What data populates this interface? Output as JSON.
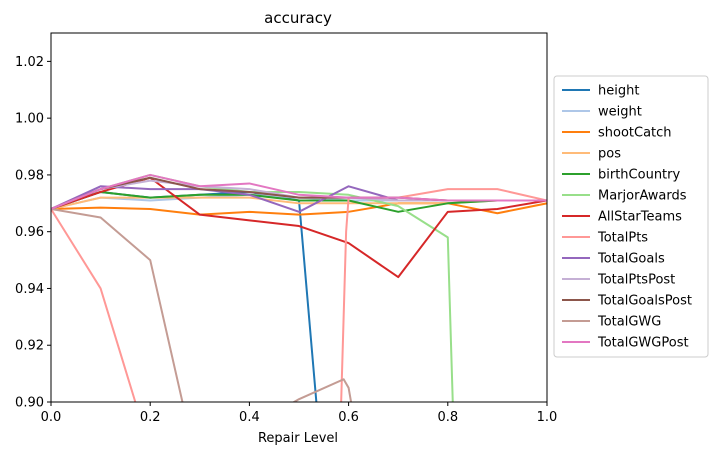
{
  "chart_data": {
    "type": "line",
    "title": "accuracy",
    "xlabel": "Repair Level",
    "ylabel": "",
    "xlim": [
      0,
      1
    ],
    "ylim": [
      0.9,
      1.03
    ],
    "xticks": [
      "0.0",
      "0.2",
      "0.4",
      "0.6",
      "0.8",
      "1.0"
    ],
    "yticks": [
      "0.90",
      "0.92",
      "0.94",
      "0.96",
      "0.98",
      "1.00",
      "1.02"
    ],
    "grid": false,
    "legend_position": "center-right-outside",
    "series": [
      {
        "name": "height",
        "color": "#1f77b4",
        "x": [
          0,
          0.1,
          0.2,
          0.3,
          0.4,
          0.5,
          0.535
        ],
        "y": [
          0.968,
          0.974,
          0.972,
          0.973,
          0.974,
          0.971,
          0.9
        ]
      },
      {
        "name": "weight",
        "color": "#aec7e8",
        "x": [
          0,
          0.1,
          0.2,
          0.3,
          0.4,
          0.5,
          0.6,
          0.7,
          0.8,
          0.9,
          1.0
        ],
        "y": [
          0.968,
          0.972,
          0.971,
          0.972,
          0.973,
          0.972,
          0.971,
          0.971,
          0.971,
          0.971,
          0.971
        ]
      },
      {
        "name": "shootCatch",
        "color": "#ff7f0e",
        "x": [
          0,
          0.1,
          0.2,
          0.3,
          0.4,
          0.5,
          0.6,
          0.7,
          0.8,
          0.9,
          1.0
        ],
        "y": [
          0.968,
          0.9685,
          0.968,
          0.966,
          0.967,
          0.966,
          0.967,
          0.97,
          0.97,
          0.9665,
          0.97
        ]
      },
      {
        "name": "pos",
        "color": "#ffbb78",
        "x": [
          0,
          0.1,
          0.2,
          0.3,
          0.4,
          0.5,
          0.6,
          0.7,
          0.8,
          0.9,
          1.0
        ],
        "y": [
          0.968,
          0.972,
          0.972,
          0.972,
          0.972,
          0.97,
          0.97,
          0.97,
          0.97,
          0.971,
          0.971
        ]
      },
      {
        "name": "birthCountry",
        "color": "#2ca02c",
        "x": [
          0,
          0.1,
          0.2,
          0.3,
          0.4,
          0.5,
          0.6,
          0.7,
          0.8,
          0.9,
          1.0
        ],
        "y": [
          0.968,
          0.974,
          0.972,
          0.973,
          0.973,
          0.971,
          0.971,
          0.967,
          0.97,
          0.971,
          0.971
        ]
      },
      {
        "name": "MarjorAwards",
        "color": "#98df8a",
        "x": [
          0,
          0.1,
          0.2,
          0.3,
          0.4,
          0.5,
          0.6,
          0.7,
          0.8,
          0.81
        ],
        "y": [
          0.968,
          0.975,
          0.98,
          0.976,
          0.974,
          0.974,
          0.973,
          0.969,
          0.958,
          0.9
        ]
      },
      {
        "name": "AllStarTeams",
        "color": "#d62728",
        "x": [
          0,
          0.1,
          0.2,
          0.3,
          0.4,
          0.5,
          0.6,
          0.7,
          0.8,
          0.9,
          1.0
        ],
        "y": [
          0.968,
          0.974,
          0.979,
          0.966,
          0.964,
          0.962,
          0.956,
          0.944,
          0.967,
          0.968,
          0.971
        ]
      },
      {
        "name": "TotalPts",
        "color": "#ff9896",
        "x": [
          0,
          0.1,
          0.17,
          null,
          0.585,
          0.595,
          0.6,
          0.7,
          0.8,
          0.9,
          1.0
        ],
        "y": [
          0.968,
          0.94,
          0.9,
          null,
          0.9,
          0.96,
          0.972,
          0.972,
          0.975,
          0.975,
          0.971
        ]
      },
      {
        "name": "TotalGoals",
        "color": "#9467bd",
        "x": [
          0,
          0.1,
          0.2,
          0.3,
          0.4,
          0.5,
          0.6,
          0.7,
          0.8,
          0.9,
          1.0
        ],
        "y": [
          0.968,
          0.976,
          0.975,
          0.975,
          0.973,
          0.967,
          0.976,
          0.971,
          0.971,
          0.971,
          0.971
        ]
      },
      {
        "name": "TotalPtsPost",
        "color": "#c5b0d5",
        "x": [
          0,
          0.1,
          0.2,
          0.3,
          0.4,
          0.5,
          0.6,
          0.7,
          0.8,
          0.9,
          1.0
        ],
        "y": [
          0.968,
          0.975,
          0.978,
          0.976,
          0.975,
          0.972,
          0.972,
          0.971,
          0.971,
          0.971,
          0.971
        ]
      },
      {
        "name": "TotalGoalsPost",
        "color": "#8c564b",
        "x": [
          0,
          0.1,
          0.2,
          0.3,
          0.4,
          0.5,
          0.6,
          0.7,
          0.8,
          0.9,
          1.0
        ],
        "y": [
          0.968,
          0.975,
          0.979,
          0.975,
          0.974,
          0.972,
          0.972,
          0.972,
          0.971,
          0.971,
          0.971
        ]
      },
      {
        "name": "TotalGWG",
        "color": "#c49c94",
        "x": [
          0,
          0.1,
          0.2,
          0.265,
          null,
          0.49,
          0.5,
          0.59,
          0.6,
          0.605
        ],
        "y": [
          0.968,
          0.965,
          0.95,
          0.9,
          null,
          0.9,
          0.901,
          0.908,
          0.905,
          0.9
        ]
      },
      {
        "name": "TotalGWGPost",
        "color": "#e377c2",
        "x": [
          0,
          0.1,
          0.2,
          0.3,
          0.4,
          0.5,
          0.6,
          0.7,
          0.8,
          0.9,
          1.0
        ],
        "y": [
          0.968,
          0.975,
          0.98,
          0.976,
          0.977,
          0.973,
          0.972,
          0.972,
          0.971,
          0.971,
          0.971
        ]
      }
    ]
  }
}
